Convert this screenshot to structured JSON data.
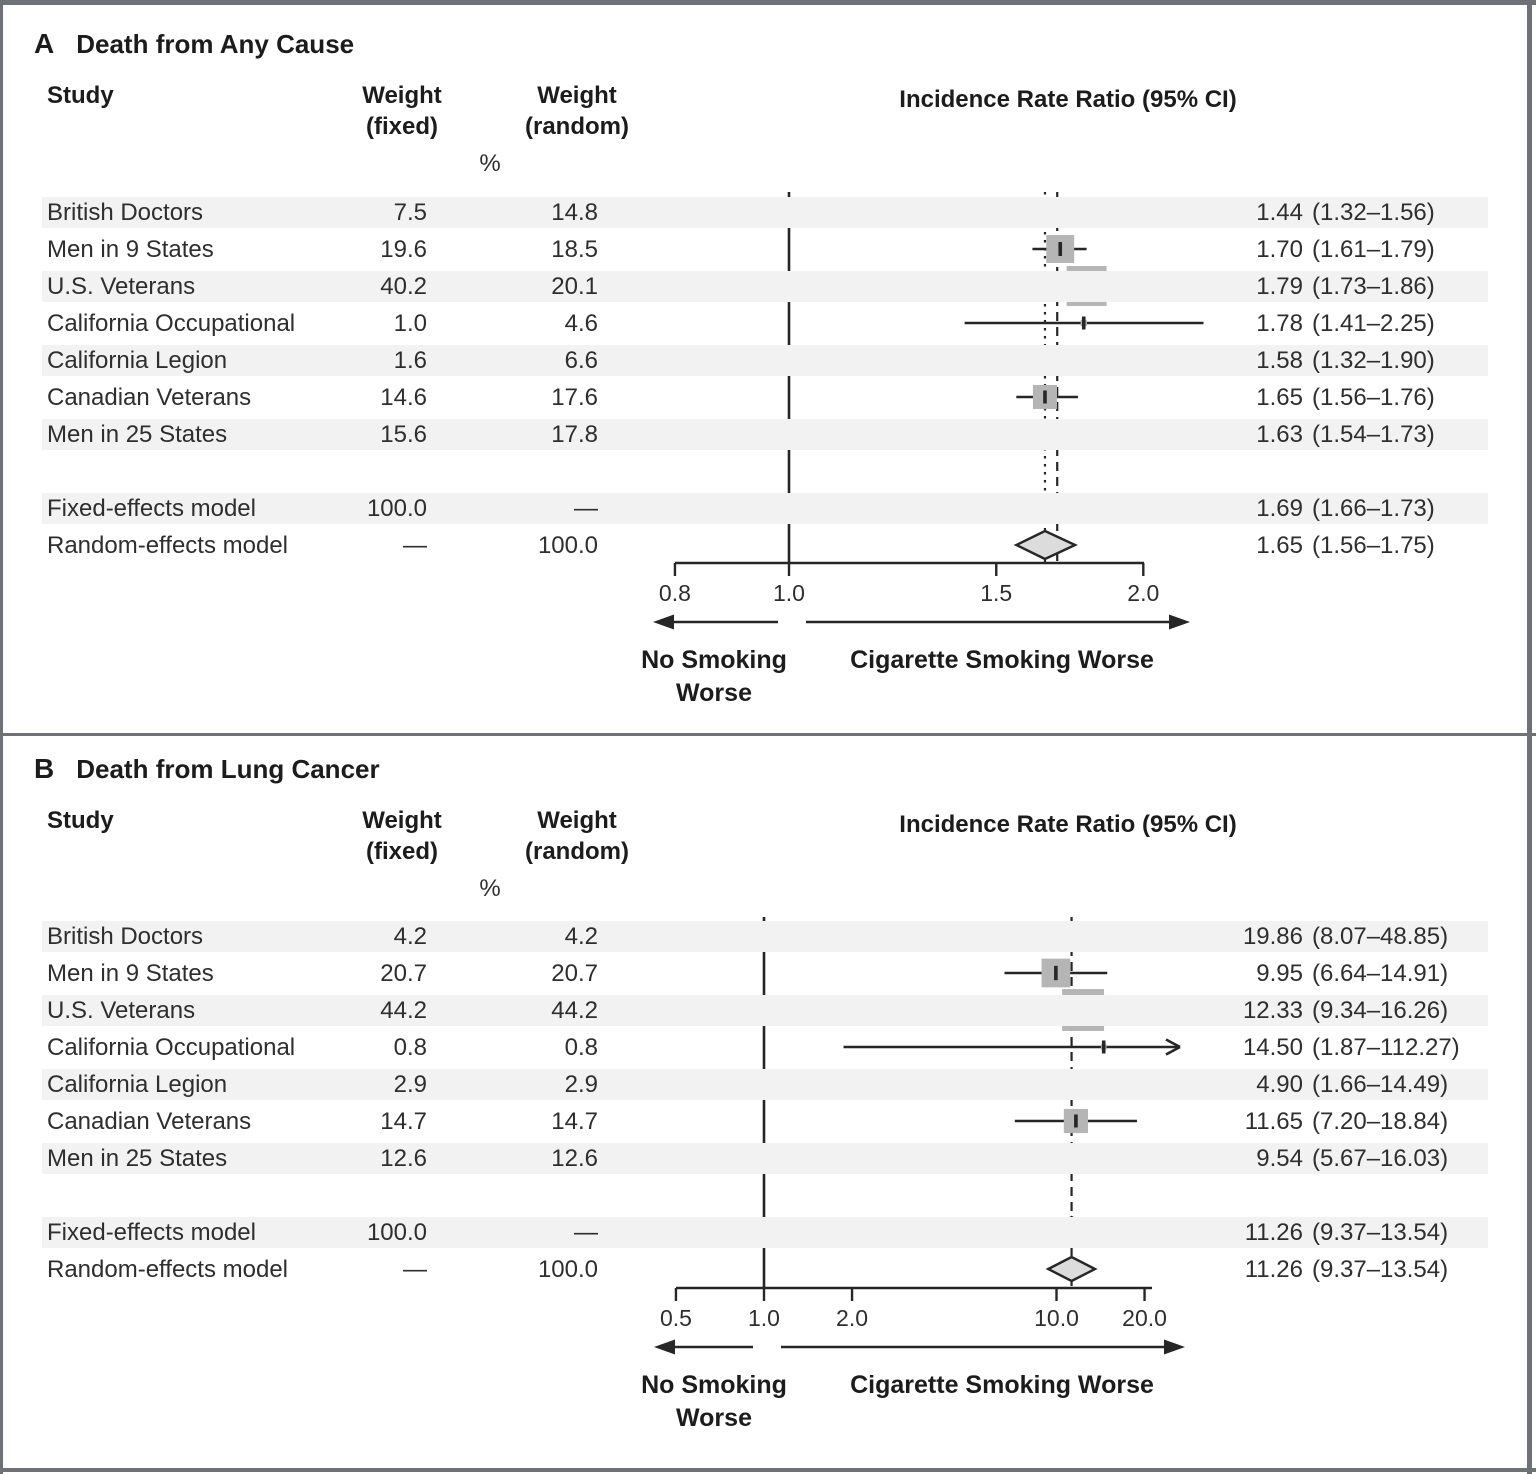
{
  "figure": {
    "border_color": "#6e7276",
    "stripe_color": "#f2f2f2",
    "box_color": "#b5b5b5",
    "diamond_fill": "#dcdcdc",
    "line_color": "#262626"
  },
  "chart_data": [
    {
      "type": "forest",
      "panel_label": "A",
      "title": "Death from Any Cause",
      "columns": {
        "study": "Study",
        "weight_fixed": [
          "Weight",
          "(fixed)"
        ],
        "weight_random": [
          "Weight",
          "(random)"
        ],
        "percent": "%",
        "effect": "Incidence Rate Ratio (95% CI)"
      },
      "axis": {
        "scale": "log",
        "reference": 1.0,
        "ticks": [
          0.8,
          1.0,
          1.5,
          2.0
        ],
        "tick_labels": [
          "0.8",
          "1.0",
          "1.5",
          "2.0"
        ]
      },
      "direction_labels": {
        "left": [
          "No Smoking",
          "Worse"
        ],
        "right": "Cigarette Smoking Worse"
      },
      "studies": [
        {
          "name": "British Doctors",
          "weight_fixed": "7.5",
          "weight_random": "14.8",
          "est": 1.44,
          "lo": 1.32,
          "hi": 1.56,
          "est_label": "1.44",
          "ci_label": "(1.32–1.56)"
        },
        {
          "name": "Men in 9 States",
          "weight_fixed": "19.6",
          "weight_random": "18.5",
          "est": 1.7,
          "lo": 1.61,
          "hi": 1.79,
          "est_label": "1.70",
          "ci_label": "(1.61–1.79)"
        },
        {
          "name": "U.S. Veterans",
          "weight_fixed": "40.2",
          "weight_random": "20.1",
          "est": 1.79,
          "lo": 1.73,
          "hi": 1.86,
          "est_label": "1.79",
          "ci_label": "(1.73–1.86)"
        },
        {
          "name": "California Occupational",
          "weight_fixed": "1.0",
          "weight_random": "4.6",
          "est": 1.78,
          "lo": 1.41,
          "hi": 2.25,
          "est_label": "1.78",
          "ci_label": "(1.41–2.25)"
        },
        {
          "name": "California Legion",
          "weight_fixed": "1.6",
          "weight_random": "6.6",
          "est": 1.58,
          "lo": 1.32,
          "hi": 1.9,
          "est_label": "1.58",
          "ci_label": "(1.32–1.90)"
        },
        {
          "name": "Canadian Veterans",
          "weight_fixed": "14.6",
          "weight_random": "17.6",
          "est": 1.65,
          "lo": 1.56,
          "hi": 1.76,
          "est_label": "1.65",
          "ci_label": "(1.56–1.76)"
        },
        {
          "name": "Men in 25 States",
          "weight_fixed": "15.6",
          "weight_random": "17.8",
          "est": 1.63,
          "lo": 1.54,
          "hi": 1.73,
          "est_label": "1.63",
          "ci_label": "(1.54–1.73)"
        }
      ],
      "models": [
        {
          "name": "Fixed-effects model",
          "weight_fixed": "100.0",
          "weight_random": "—",
          "est": 1.69,
          "lo": 1.66,
          "hi": 1.73,
          "est_label": "1.69",
          "ci_label": "(1.66–1.73)",
          "ref_line": "dashed"
        },
        {
          "name": "Random-effects model",
          "weight_fixed": "—",
          "weight_random": "100.0",
          "est": 1.65,
          "lo": 1.56,
          "hi": 1.75,
          "est_label": "1.65",
          "ci_label": "(1.56–1.75)",
          "ref_line": "dotted"
        }
      ]
    },
    {
      "type": "forest",
      "panel_label": "B",
      "title": "Death from Lung Cancer",
      "columns": {
        "study": "Study",
        "weight_fixed": [
          "Weight",
          "(fixed)"
        ],
        "weight_random": [
          "Weight",
          "(random)"
        ],
        "percent": "%",
        "effect": "Incidence Rate Ratio (95% CI)"
      },
      "axis": {
        "scale": "log",
        "reference": 1.0,
        "ticks": [
          0.5,
          1.0,
          2.0,
          10.0,
          20.0
        ],
        "tick_labels": [
          "0.5",
          "1.0",
          "2.0",
          "10.0",
          "20.0"
        ]
      },
      "direction_labels": {
        "left": [
          "No Smoking",
          "Worse"
        ],
        "right": "Cigarette Smoking Worse"
      },
      "studies": [
        {
          "name": "British Doctors",
          "weight_fixed": "4.2",
          "weight_random": "4.2",
          "est": 19.86,
          "lo": 8.07,
          "hi": 48.85,
          "est_label": "19.86",
          "ci_label": "(8.07–48.85)"
        },
        {
          "name": "Men in 9 States",
          "weight_fixed": "20.7",
          "weight_random": "20.7",
          "est": 9.95,
          "lo": 6.64,
          "hi": 14.91,
          "est_label": "9.95",
          "ci_label": "(6.64–14.91)"
        },
        {
          "name": "U.S. Veterans",
          "weight_fixed": "44.2",
          "weight_random": "44.2",
          "est": 12.33,
          "lo": 9.34,
          "hi": 16.26,
          "est_label": "12.33",
          "ci_label": "(9.34–16.26)"
        },
        {
          "name": "California Occupational",
          "weight_fixed": "0.8",
          "weight_random": "0.8",
          "est": 14.5,
          "lo": 1.87,
          "hi": 112.27,
          "est_label": "14.50",
          "ci_label": "(1.87–112.27)"
        },
        {
          "name": "California Legion",
          "weight_fixed": "2.9",
          "weight_random": "2.9",
          "est": 4.9,
          "lo": 1.66,
          "hi": 14.49,
          "est_label": "4.90",
          "ci_label": "(1.66–14.49)"
        },
        {
          "name": "Canadian Veterans",
          "weight_fixed": "14.7",
          "weight_random": "14.7",
          "est": 11.65,
          "lo": 7.2,
          "hi": 18.84,
          "est_label": "11.65",
          "ci_label": "(7.20–18.84)"
        },
        {
          "name": "Men in 25 States",
          "weight_fixed": "12.6",
          "weight_random": "12.6",
          "est": 9.54,
          "lo": 5.67,
          "hi": 16.03,
          "est_label": "9.54",
          "ci_label": "(5.67–16.03)"
        }
      ],
      "models": [
        {
          "name": "Fixed-effects model",
          "weight_fixed": "100.0",
          "weight_random": "—",
          "est": 11.26,
          "lo": 9.37,
          "hi": 13.54,
          "est_label": "11.26",
          "ci_label": "(9.37–13.54)",
          "ref_line": "dashed"
        },
        {
          "name": "Random-effects model",
          "weight_fixed": "—",
          "weight_random": "100.0",
          "est": 11.26,
          "lo": 9.37,
          "hi": 13.54,
          "est_label": "11.26",
          "ci_label": "(9.37–13.54)",
          "ref_line": "none"
        }
      ]
    }
  ]
}
